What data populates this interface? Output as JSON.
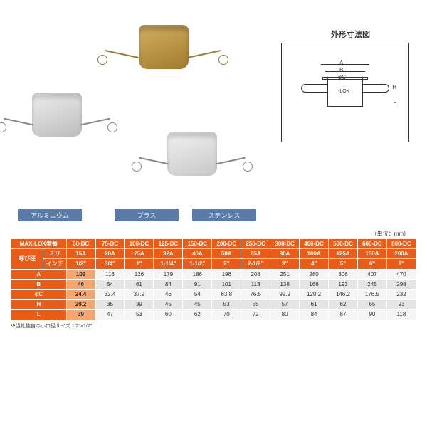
{
  "diagram_title": "外形寸法図",
  "unit_note": "（単位：mm）",
  "labels": {
    "aluminum": "アルミニウム",
    "brass": "ブラス",
    "stainless": "ステンレス"
  },
  "label_bg": "#5a7aa8",
  "header_bg": "#e85d1a",
  "emph_bg": "#f5a671",
  "tech_labels": {
    "A": "A",
    "B": "B",
    "C": "φC",
    "H": "H",
    "L": "L",
    "lok": "-LOK"
  },
  "table": {
    "row_model_label": "MAX-LOK型番",
    "row_dia_label": "呼び径",
    "row_mm_label": "ミリ",
    "row_inch_label": "インチ",
    "models": [
      "50-DC",
      "75-DC",
      "100-DC",
      "125-DC",
      "150-DC",
      "200-DC",
      "250-DC",
      "300-DC",
      "400-DC",
      "500-DC",
      "600-DC",
      "800-DC"
    ],
    "mm": [
      "15A",
      "20A",
      "25A",
      "32A",
      "40A",
      "50A",
      "65A",
      "80A",
      "100A",
      "125A",
      "150A",
      "200A"
    ],
    "inch": [
      "1/2\"",
      "3/4\"",
      "1\"",
      "1-1/4\"",
      "1-1/2\"",
      "2\"",
      "2-1/2\"",
      "3\"",
      "4\"",
      "5\"",
      "6\"",
      "8\""
    ],
    "dims": {
      "A": [
        "109",
        "116",
        "126",
        "179",
        "186",
        "196",
        "208",
        "251",
        "280",
        "306",
        "407",
        "470"
      ],
      "B": [
        "46",
        "54",
        "61",
        "84",
        "91",
        "101",
        "113",
        "138",
        "166",
        "193",
        "245",
        "298"
      ],
      "φC": [
        "24.4",
        "32.4",
        "37.2",
        "46",
        "54",
        "63.8",
        "76.5",
        "92.2",
        "120.2",
        "146.2",
        "176.5",
        "232"
      ],
      "H": [
        "29.2",
        "35",
        "39",
        "45",
        "45",
        "53",
        "55",
        "57",
        "61",
        "62",
        "65",
        "93"
      ],
      "L": [
        "39",
        "47",
        "53",
        "60",
        "62",
        "70",
        "72",
        "80",
        "84",
        "87",
        "90",
        "118"
      ]
    },
    "footnote": "※当社独自の小口径サイズ 1/2\"×1/2\""
  }
}
